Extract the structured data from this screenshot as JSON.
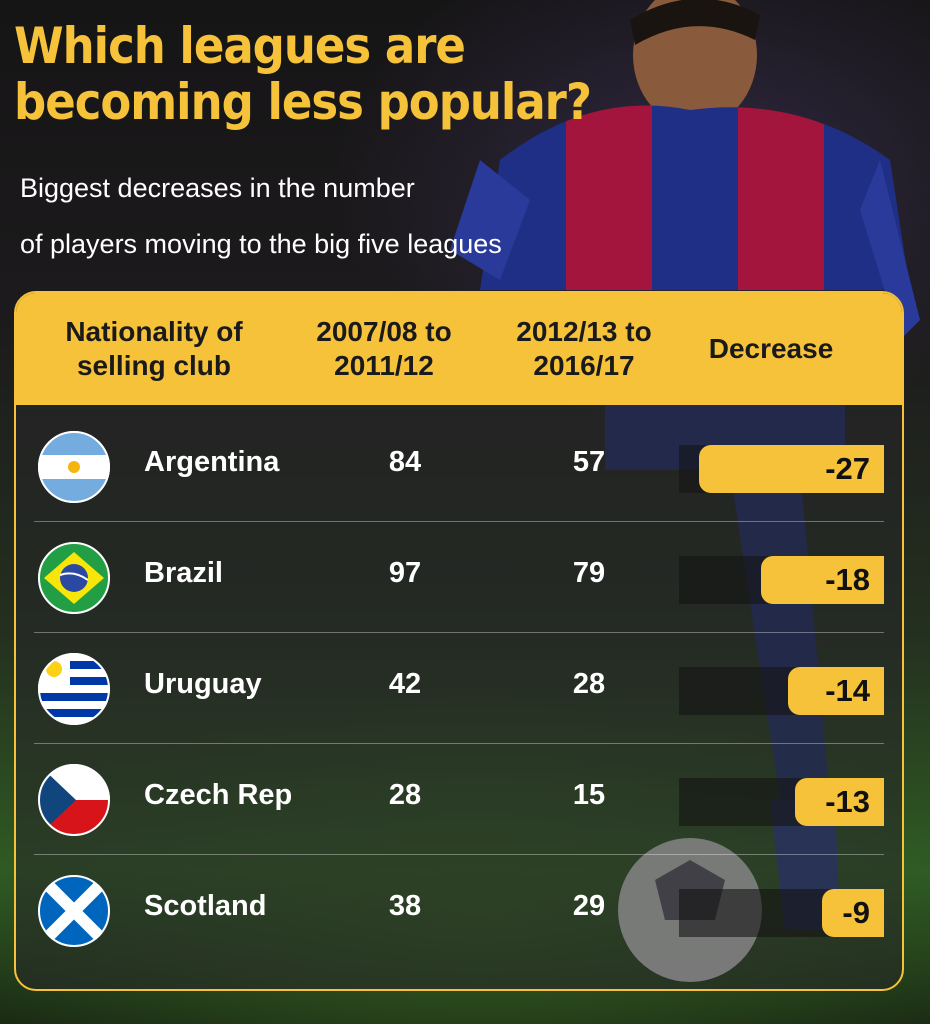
{
  "header": {
    "title_line1": "Which leagues are",
    "title_line2": "becoming less popular?",
    "subtitle_line1": "Biggest decreases in the number",
    "subtitle_line2": "of players moving to the big five leagues"
  },
  "colors": {
    "accent": "#f5c23a",
    "text": "#ffffff"
  },
  "chart_data": {
    "type": "table",
    "columns": [
      "Nationality of selling club",
      "2007/08 to 2011/12",
      "2012/13 to 2016/17",
      "Decrease"
    ],
    "rows": [
      {
        "country": "Argentina",
        "flag_icon": "argentina-flag-icon",
        "p1": 84,
        "p2": 57,
        "decrease": -27,
        "decrease_label": "-27"
      },
      {
        "country": "Brazil",
        "flag_icon": "brazil-flag-icon",
        "p1": 97,
        "p2": 79,
        "decrease": -18,
        "decrease_label": "-18"
      },
      {
        "country": "Uruguay",
        "flag_icon": "uruguay-flag-icon",
        "p1": 42,
        "p2": 28,
        "decrease": -14,
        "decrease_label": "-14"
      },
      {
        "country": "Czech Rep",
        "flag_icon": "czech-flag-icon",
        "p1": 28,
        "p2": 15,
        "decrease": -13,
        "decrease_label": "-13"
      },
      {
        "country": "Scotland",
        "flag_icon": "scotland-flag-icon",
        "p1": 38,
        "p2": 29,
        "decrease": -9,
        "decrease_label": "-9"
      }
    ]
  }
}
